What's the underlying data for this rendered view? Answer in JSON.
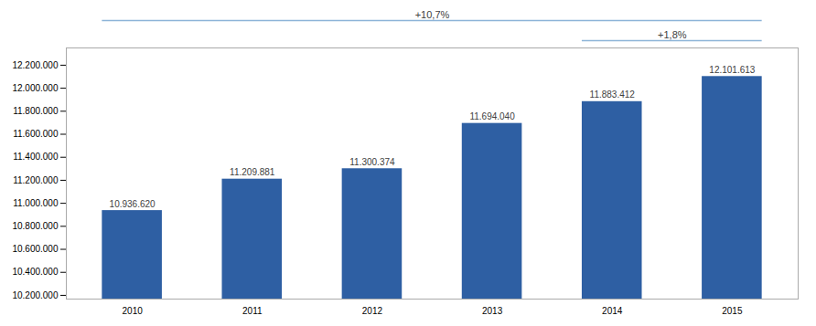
{
  "chart_data": {
    "type": "bar",
    "categories": [
      "2010",
      "2011",
      "2012",
      "2013",
      "2014",
      "2015"
    ],
    "values": [
      10936620,
      11209881,
      11300374,
      11694040,
      11883412,
      12101613
    ],
    "value_labels": [
      "10.936.620",
      "11.209.881",
      "11.300.374",
      "11.694.040",
      "11.883.412",
      "12.101.613"
    ],
    "data_labels": true,
    "color": "#2E5FA3",
    "ylim": [
      10167750,
      12350000
    ],
    "yticks": [
      {
        "value": 10200000,
        "label": "10.200.000"
      },
      {
        "value": 10400000,
        "label": "10.400.000"
      },
      {
        "value": 10600000,
        "label": "10.600.000"
      },
      {
        "value": 10800000,
        "label": "10.800.000"
      },
      {
        "value": 11000000,
        "label": "11.000.000"
      },
      {
        "value": 11200000,
        "label": "11.200.000"
      },
      {
        "value": 11400000,
        "label": "11.400.000"
      },
      {
        "value": 11600000,
        "label": "11.600.000"
      },
      {
        "value": 11800000,
        "label": "11.800.000"
      },
      {
        "value": 12000000,
        "label": "12.000.000"
      },
      {
        "value": 12200000,
        "label": "12.200.000"
      }
    ],
    "annotations": [
      "+10,7%",
      "+1,8%"
    ],
    "grid": false
  }
}
